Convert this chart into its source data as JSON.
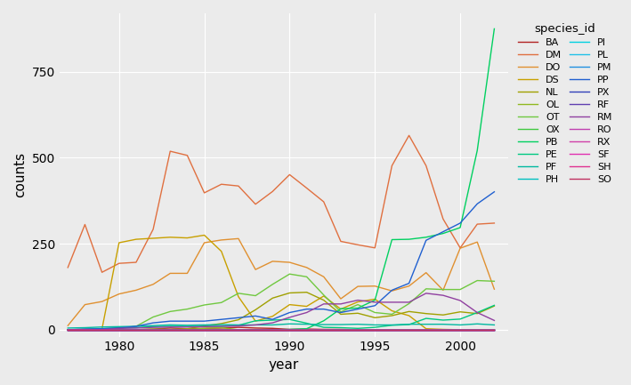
{
  "xlabel": "year",
  "ylabel": "counts",
  "legend_title": "species_id",
  "bg_color": "#ebebeb",
  "grid_color": "white",
  "years": [
    1977,
    1978,
    1979,
    1980,
    1981,
    1982,
    1983,
    1984,
    1985,
    1986,
    1987,
    1988,
    1989,
    1990,
    1991,
    1992,
    1993,
    1994,
    1995,
    1996,
    1997,
    1998,
    1999,
    2000,
    2001,
    2002
  ],
  "series": [
    {
      "id": "BA",
      "color": "#b22222",
      "counts": [
        0,
        0,
        0,
        0,
        0,
        2,
        5,
        3,
        4,
        5,
        7,
        5,
        4,
        1,
        2,
        1,
        1,
        0,
        0,
        0,
        0,
        0,
        0,
        0,
        0,
        0
      ]
    },
    {
      "id": "DM",
      "color": "#e07040",
      "counts": [
        181,
        306,
        167,
        193,
        196,
        292,
        519,
        507,
        398,
        423,
        418,
        365,
        402,
        451,
        412,
        372,
        257,
        247,
        238,
        477,
        565,
        477,
        322,
        238,
        307,
        310
      ]
    },
    {
      "id": "DO",
      "color": "#e09030",
      "counts": [
        12,
        73,
        82,
        104,
        115,
        132,
        164,
        164,
        253,
        261,
        265,
        175,
        199,
        196,
        181,
        154,
        90,
        126,
        127,
        113,
        127,
        166,
        115,
        237,
        255,
        118
      ]
    },
    {
      "id": "DS",
      "color": "#c8a000",
      "counts": [
        0,
        1,
        2,
        253,
        263,
        266,
        269,
        267,
        275,
        228,
        96,
        25,
        39,
        73,
        68,
        98,
        60,
        81,
        89,
        55,
        41,
        3,
        1,
        0,
        0,
        0
      ]
    },
    {
      "id": "NL",
      "color": "#a0a000",
      "counts": [
        0,
        0,
        0,
        0,
        0,
        0,
        0,
        3,
        11,
        18,
        29,
        58,
        92,
        107,
        109,
        86,
        45,
        48,
        35,
        41,
        53,
        47,
        43,
        52,
        47,
        69
      ]
    },
    {
      "id": "OL",
      "color": "#90b820",
      "counts": [
        0,
        0,
        1,
        0,
        0,
        2,
        1,
        1,
        4,
        6,
        0,
        0,
        0,
        0,
        0,
        0,
        0,
        0,
        0,
        0,
        0,
        0,
        0,
        0,
        0,
        0
      ]
    },
    {
      "id": "OT",
      "color": "#70c840",
      "counts": [
        0,
        1,
        2,
        3,
        10,
        37,
        53,
        60,
        72,
        79,
        106,
        99,
        132,
        162,
        154,
        101,
        52,
        73,
        50,
        45,
        76,
        119,
        117,
        117,
        143,
        141
      ]
    },
    {
      "id": "OX",
      "color": "#40c840",
      "counts": [
        0,
        0,
        0,
        0,
        0,
        0,
        0,
        0,
        0,
        0,
        0,
        0,
        0,
        0,
        0,
        0,
        0,
        0,
        0,
        0,
        0,
        0,
        0,
        0,
        0,
        0
      ]
    },
    {
      "id": "PB",
      "color": "#00d060",
      "counts": [
        0,
        0,
        0,
        0,
        0,
        0,
        0,
        0,
        0,
        0,
        0,
        0,
        0,
        1,
        3,
        26,
        61,
        63,
        86,
        262,
        263,
        269,
        280,
        297,
        521,
        875
      ]
    },
    {
      "id": "PE",
      "color": "#00c880",
      "counts": [
        0,
        1,
        3,
        6,
        6,
        9,
        10,
        10,
        10,
        10,
        13,
        26,
        28,
        30,
        19,
        7,
        6,
        4,
        7,
        13,
        15,
        33,
        28,
        31,
        50,
        71
      ]
    },
    {
      "id": "PF",
      "color": "#00b8a0",
      "counts": [
        5,
        6,
        8,
        9,
        10,
        12,
        14,
        13,
        14,
        15,
        14,
        14,
        14,
        17,
        16,
        15,
        15,
        16,
        14,
        14,
        16,
        16,
        16,
        14,
        17,
        14
      ]
    },
    {
      "id": "PH",
      "color": "#00c0c0",
      "counts": [
        0,
        0,
        0,
        0,
        0,
        0,
        0,
        0,
        0,
        0,
        0,
        0,
        0,
        0,
        0,
        0,
        0,
        0,
        0,
        0,
        0,
        0,
        0,
        0,
        0,
        0
      ]
    },
    {
      "id": "PI",
      "color": "#00d0e0",
      "counts": [
        0,
        0,
        0,
        0,
        0,
        0,
        0,
        0,
        0,
        0,
        0,
        0,
        0,
        0,
        0,
        0,
        0,
        0,
        0,
        0,
        0,
        0,
        0,
        0,
        0,
        0
      ]
    },
    {
      "id": "PL",
      "color": "#20c0e8",
      "counts": [
        0,
        0,
        0,
        0,
        0,
        0,
        0,
        0,
        0,
        0,
        0,
        0,
        0,
        0,
        0,
        0,
        0,
        0,
        0,
        0,
        0,
        0,
        0,
        0,
        0,
        0
      ]
    },
    {
      "id": "PM",
      "color": "#2090e0",
      "counts": [
        0,
        0,
        0,
        0,
        0,
        0,
        0,
        0,
        0,
        0,
        0,
        0,
        0,
        0,
        0,
        0,
        0,
        0,
        0,
        0,
        0,
        0,
        0,
        0,
        0,
        0
      ]
    },
    {
      "id": "PP",
      "color": "#2060d0",
      "counts": [
        0,
        2,
        3,
        5,
        10,
        20,
        25,
        25,
        25,
        30,
        35,
        40,
        30,
        50,
        60,
        60,
        50,
        60,
        70,
        115,
        135,
        260,
        285,
        310,
        366,
        401
      ]
    },
    {
      "id": "PX",
      "color": "#3040b8",
      "counts": [
        0,
        0,
        0,
        0,
        0,
        0,
        0,
        0,
        0,
        0,
        0,
        0,
        0,
        0,
        0,
        0,
        0,
        0,
        0,
        0,
        0,
        0,
        0,
        0,
        0,
        0
      ]
    },
    {
      "id": "RF",
      "color": "#6040b0",
      "counts": [
        0,
        0,
        0,
        0,
        0,
        0,
        0,
        0,
        0,
        0,
        0,
        0,
        0,
        0,
        0,
        0,
        0,
        0,
        0,
        0,
        0,
        0,
        0,
        0,
        0,
        0
      ]
    },
    {
      "id": "RM",
      "color": "#9040a0",
      "counts": [
        0,
        0,
        0,
        4,
        5,
        7,
        8,
        8,
        9,
        10,
        11,
        14,
        20,
        36,
        50,
        75,
        75,
        86,
        80,
        80,
        80,
        106,
        100,
        85,
        50,
        27
      ]
    },
    {
      "id": "RO",
      "color": "#c040b0",
      "counts": [
        0,
        0,
        0,
        0,
        0,
        0,
        0,
        0,
        0,
        0,
        0,
        0,
        0,
        0,
        0,
        0,
        0,
        0,
        0,
        0,
        0,
        0,
        0,
        0,
        0,
        0
      ]
    },
    {
      "id": "RX",
      "color": "#d040a8",
      "counts": [
        0,
        0,
        0,
        0,
        0,
        0,
        0,
        0,
        0,
        0,
        0,
        0,
        0,
        0,
        0,
        0,
        0,
        0,
        0,
        0,
        0,
        0,
        0,
        0,
        0,
        0
      ]
    },
    {
      "id": "SF",
      "color": "#e030b0",
      "counts": [
        0,
        0,
        0,
        0,
        0,
        0,
        0,
        0,
        0,
        0,
        0,
        0,
        0,
        0,
        0,
        0,
        0,
        0,
        0,
        0,
        0,
        0,
        0,
        0,
        0,
        0
      ]
    },
    {
      "id": "SH",
      "color": "#e03090",
      "counts": [
        0,
        0,
        0,
        0,
        0,
        0,
        0,
        0,
        0,
        0,
        0,
        0,
        0,
        0,
        0,
        0,
        0,
        0,
        0,
        0,
        0,
        0,
        0,
        0,
        0,
        0
      ]
    },
    {
      "id": "SO",
      "color": "#c03060",
      "counts": [
        0,
        0,
        0,
        0,
        0,
        0,
        0,
        0,
        0,
        0,
        0,
        0,
        0,
        0,
        0,
        0,
        0,
        0,
        0,
        0,
        0,
        0,
        0,
        0,
        0,
        0
      ]
    }
  ],
  "yticks": [
    0,
    250,
    500,
    750
  ],
  "xticks": [
    1980,
    1985,
    1990,
    1995,
    2000
  ],
  "ylim": [
    -20,
    920
  ],
  "xlim": [
    1976.5,
    2002.8
  ]
}
